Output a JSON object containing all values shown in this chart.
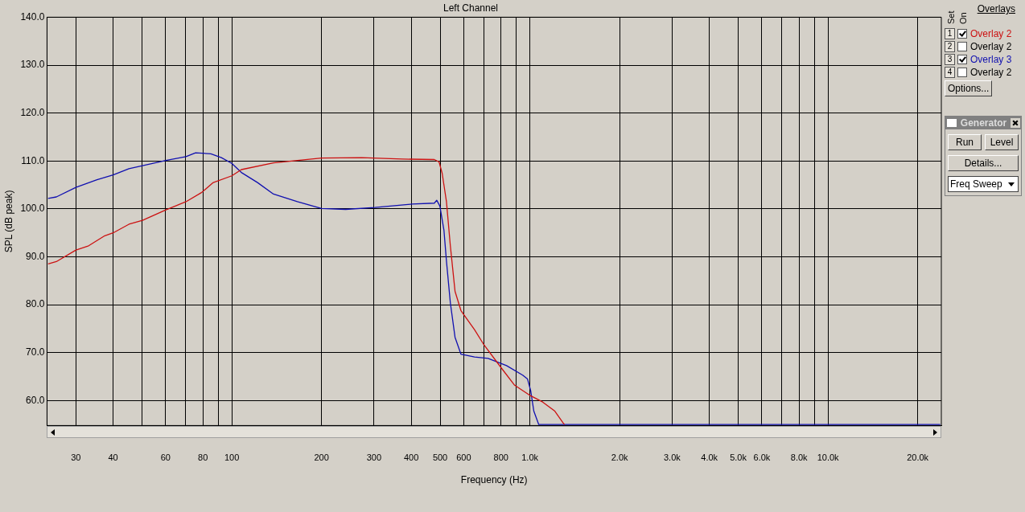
{
  "chart_data": {
    "type": "line",
    "title": "Left Channel",
    "xlabel": "Frequency (Hz)",
    "ylabel": "SPL (dB peak)",
    "log": "x",
    "grid": true,
    "legend": "top right",
    "marker": "none",
    "line_style": "solid",
    "xlim": [
      24,
      24000
    ],
    "xticks": [
      30,
      40,
      {
        "value": 50,
        "label": null
      },
      60,
      {
        "value": 70,
        "label": null
      },
      80,
      {
        "value": 90,
        "label": null
      },
      100,
      200,
      300,
      400,
      500,
      600,
      {
        "value": 700,
        "label": null
      },
      800,
      {
        "value": 900,
        "label": null
      },
      {
        "value": 1000,
        "label": "1.0k"
      },
      {
        "value": 2000,
        "label": "2.0k"
      },
      {
        "value": 3000,
        "label": "3.0k"
      },
      {
        "value": 4000,
        "label": "4.0k"
      },
      {
        "value": 5000,
        "label": "5.0k"
      },
      {
        "value": 6000,
        "label": "6.0k"
      },
      {
        "value": 7000,
        "label": null
      },
      {
        "value": 8000,
        "label": "8.0k"
      },
      {
        "value": 9000,
        "label": null
      },
      {
        "value": 10000,
        "label": "10.0k"
      },
      {
        "value": 20000,
        "label": "20.0k"
      }
    ],
    "ylim": [
      54.8,
      140
    ],
    "yticks": [
      {
        "value": 60,
        "label": "60.0"
      },
      {
        "value": 70,
        "label": "70.0"
      },
      {
        "value": 80,
        "label": "80.0"
      },
      {
        "value": 90,
        "label": "90.0"
      },
      {
        "value": 100,
        "label": "100.0"
      },
      {
        "value": 110,
        "label": "110.0"
      },
      {
        "value": 120,
        "label": "120.0"
      },
      {
        "value": 130,
        "label": "130.0"
      },
      {
        "value": 140,
        "label": "140.0"
      }
    ],
    "series": [
      {
        "name": "Overlay 2",
        "color": "#cc1111",
        "x": [
          24.2,
          25.8,
          30,
          33.1,
          37.5,
          40,
          45.2,
          50.2,
          60.1,
          70.2,
          79.1,
          86.7,
          100,
          107.7,
          138,
          200,
          273,
          373,
          478,
          496,
          508,
          525,
          541,
          561,
          587,
          652,
          702,
          800,
          889,
          1006,
          1104,
          1213,
          1291,
          1306
        ],
        "values": [
          88.5,
          89.0,
          91.4,
          92.3,
          94.4,
          95.0,
          96.8,
          97.6,
          99.8,
          101.5,
          103.4,
          105.5,
          106.9,
          108.2,
          109.6,
          110.6,
          110.7,
          110.4,
          110.3,
          109.8,
          107.4,
          101.5,
          92.3,
          82.8,
          78.8,
          74.8,
          71.6,
          66.9,
          63.2,
          61.0,
          59.7,
          57.8,
          55.4,
          55
        ]
      },
      {
        "name": "Overlay 3",
        "color": "#1010b0",
        "x": [
          24.2,
          25.8,
          30,
          35.3,
          40,
          45.2,
          50.2,
          60.1,
          70.2,
          75.6,
          85.1,
          92.3,
          100,
          107.7,
          122,
          138,
          166,
          200,
          241,
          302,
          402,
          478,
          487,
          499,
          515,
          525,
          541,
          561,
          587,
          652,
          724,
          835,
          946,
          982,
          1006,
          1031,
          1071,
          23800
        ],
        "values": [
          102.2,
          102.5,
          104.5,
          106.1,
          107.1,
          108.4,
          109.0,
          110.1,
          110.9,
          111.7,
          111.5,
          110.7,
          109.5,
          107.6,
          105.5,
          103.1,
          101.5,
          100.1,
          99.9,
          100.3,
          101.0,
          101.2,
          101.8,
          100.6,
          95.5,
          89.1,
          80.4,
          73.2,
          69.7,
          69.1,
          68.8,
          67.3,
          65.3,
          64.5,
          62.1,
          57.8,
          55,
          55
        ]
      }
    ],
    "annotations": [
      "Overlays",
      "Set",
      "On",
      "1",
      "2",
      "3",
      "4",
      "Options...",
      "Generator",
      "Run",
      "Level",
      "Details...",
      "Freq Sweep",
      "Overlay 2",
      "Overlay 2"
    ]
  }
}
